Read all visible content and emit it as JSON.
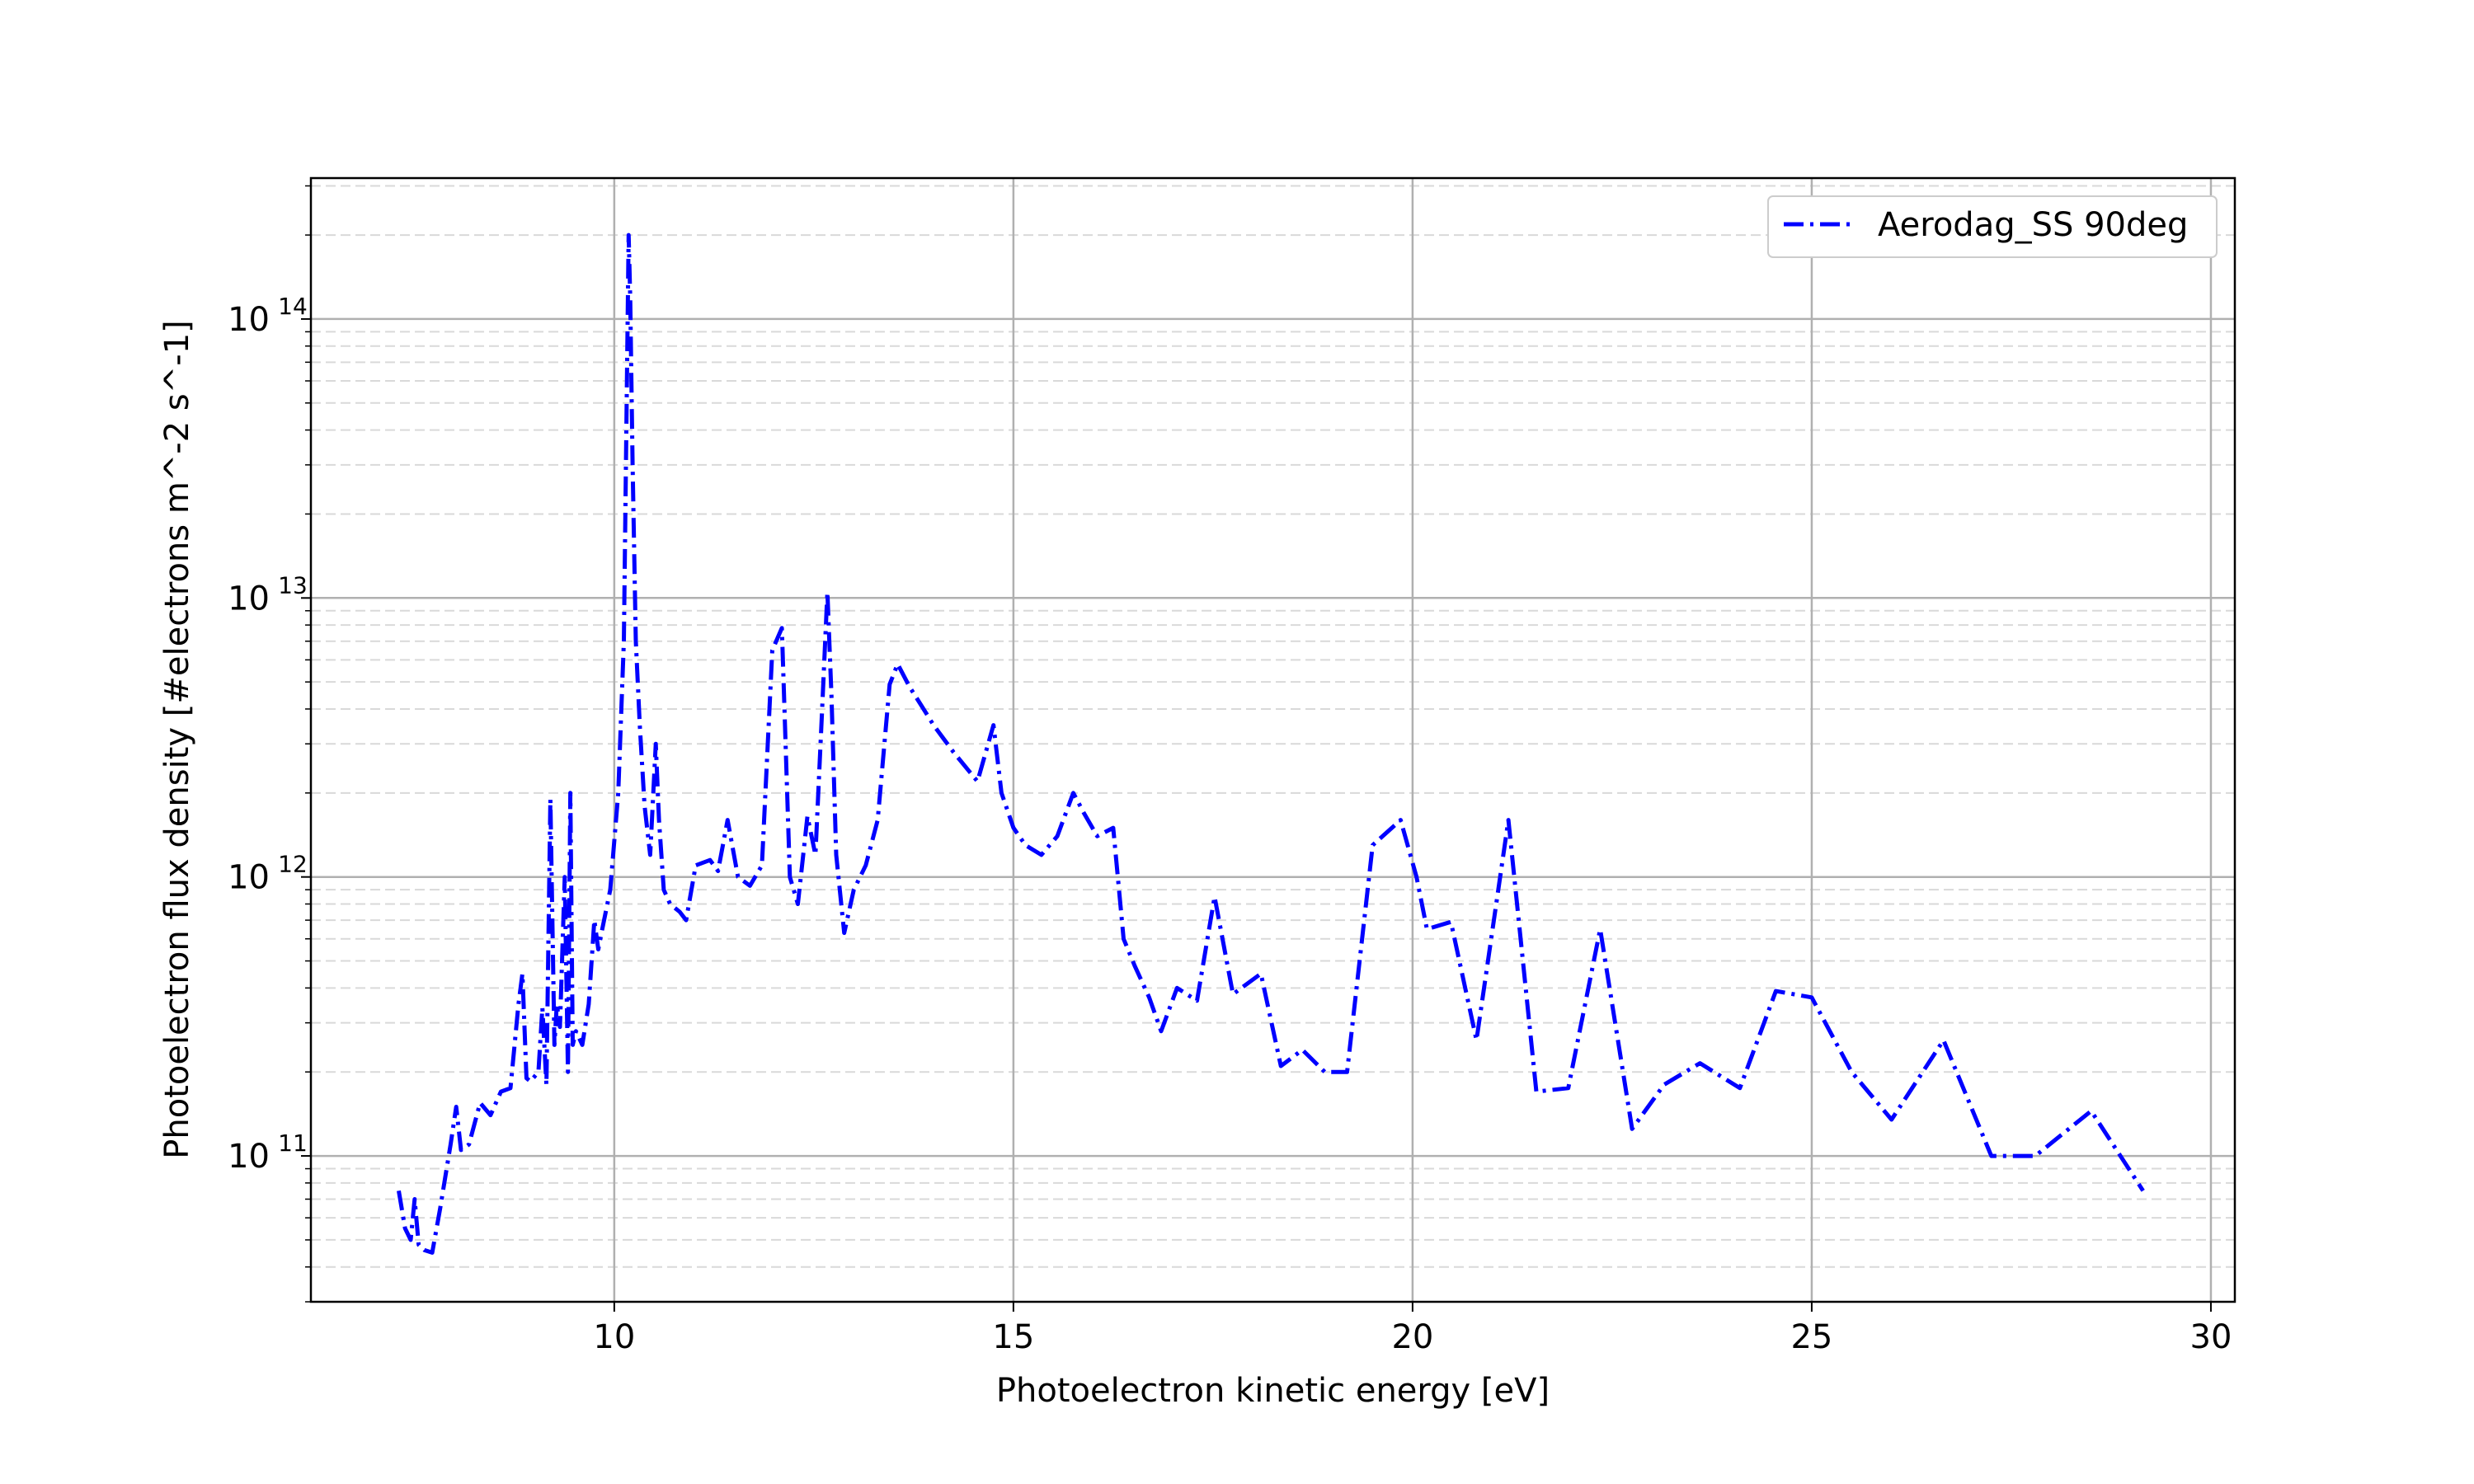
{
  "chart_data": {
    "type": "line",
    "title": "",
    "xlabel": "Photoelectron kinetic energy [eV]",
    "ylabel": "Photoelectron flux density [#electrons m^-2 s^-1]",
    "xlim": [
      6.2,
      30.3
    ],
    "ylim": [
      30000000000.0,
      320000000000000.0
    ],
    "yscale": "log",
    "grid": true,
    "minor_grid": true,
    "legend_position": "top-right",
    "xticks": [
      10,
      15,
      20,
      25,
      30
    ],
    "xtick_labels": [
      "10",
      "15",
      "20",
      "25",
      "30"
    ],
    "yticks": [
      100000000000.0,
      1000000000000.0,
      10000000000000.0,
      100000000000000.0
    ],
    "ytick_labels": [
      {
        "base": "10",
        "exp": "11"
      },
      {
        "base": "10",
        "exp": "12"
      },
      {
        "base": "10",
        "exp": "13"
      },
      {
        "base": "10",
        "exp": "14"
      }
    ],
    "series": [
      {
        "name": "Aerodag_SS 90deg",
        "color": "#0000ff",
        "line_style": "dashdot",
        "x": [
          7.3,
          7.38,
          7.45,
          7.5,
          7.55,
          7.62,
          7.72,
          7.82,
          7.95,
          8.02,
          8.08,
          8.18,
          8.32,
          8.45,
          8.58,
          8.7,
          8.8,
          8.85,
          8.9,
          8.95,
          9.05,
          9.1,
          9.15,
          9.2,
          9.25,
          9.28,
          9.32,
          9.38,
          9.42,
          9.45,
          9.48,
          9.52,
          9.6,
          9.68,
          9.75,
          9.8,
          9.85,
          9.95,
          10.05,
          10.12,
          10.18,
          10.2,
          10.23,
          10.27,
          10.32,
          10.38,
          10.45,
          10.52,
          10.56,
          10.62,
          10.7,
          10.82,
          10.9,
          11.02,
          11.2,
          11.3,
          11.42,
          11.55,
          11.7,
          11.85,
          11.98,
          12.1,
          12.2,
          12.3,
          12.42,
          12.52,
          12.6,
          12.67,
          12.72,
          12.78,
          12.88,
          13.0,
          13.15,
          13.3,
          13.45,
          13.55,
          13.7,
          13.85,
          14.0,
          14.25,
          14.55,
          14.75,
          14.85,
          15.0,
          15.15,
          15.35,
          15.55,
          15.75,
          15.88,
          16.05,
          16.25,
          16.38,
          16.52,
          16.7,
          16.85,
          17.05,
          17.3,
          17.52,
          17.75,
          18.1,
          18.35,
          18.62,
          18.9,
          19.18,
          19.5,
          19.85,
          20.05,
          20.18,
          20.48,
          20.8,
          21.2,
          21.55,
          21.95,
          22.35,
          22.75,
          23.15,
          23.6,
          24.1,
          24.55,
          25.0,
          25.5,
          26.0,
          26.65,
          27.25,
          27.8,
          28.5,
          29.15
        ],
        "y": [
          75000000000.0,
          55000000000.0,
          50000000000.0,
          70000000000.0,
          48000000000.0,
          46000000000.0,
          45000000000.0,
          65000000000.0,
          110000000000.0,
          150000000000.0,
          105000000000.0,
          110000000000.0,
          155000000000.0,
          140000000000.0,
          170000000000.0,
          175000000000.0,
          350000000000.0,
          450000000000.0,
          190000000000.0,
          185000000000.0,
          200000000000.0,
          340000000000.0,
          180000000000.0,
          1900000000000.0,
          250000000000.0,
          350000000000.0,
          290000000000.0,
          1000000000000.0,
          200000000000.0,
          2000000000000.0,
          250000000000.0,
          280000000000.0,
          250000000000.0,
          350000000000.0,
          700000000000.0,
          550000000000.0,
          650000000000.0,
          900000000000.0,
          2000000000000.0,
          7000000000000.0,
          200000000000000.0,
          120000000000000.0,
          30000000000000.0,
          7000000000000.0,
          3500000000000.0,
          1800000000000.0,
          1200000000000.0,
          3000000000000.0,
          1600000000000.0,
          900000000000.0,
          800000000000.0,
          750000000000.0,
          700000000000.0,
          1100000000000.0,
          1150000000000.0,
          1050000000000.0,
          1600000000000.0,
          1000000000000.0,
          930000000000.0,
          1100000000000.0,
          6500000000000.0,
          7800000000000.0,
          1000000000000.0,
          800000000000.0,
          1650000000000.0,
          1200000000000.0,
          3800000000000.0,
          10500000000000.0,
          4500000000000.0,
          1200000000000.0,
          630000000000.0,
          900000000000.0,
          1100000000000.0,
          1600000000000.0,
          4900000000000.0,
          5800000000000.0,
          4800000000000.0,
          4100000000000.0,
          3500000000000.0,
          2800000000000.0,
          2200000000000.0,
          3500000000000.0,
          2000000000000.0,
          1500000000000.0,
          1300000000000.0,
          1200000000000.0,
          1400000000000.0,
          2000000000000.0,
          1700000000000.0,
          1400000000000.0,
          1500000000000.0,
          600000000000.0,
          480000000000.0,
          370000000000.0,
          280000000000.0,
          400000000000.0,
          360000000000.0,
          850000000000.0,
          380000000000.0,
          450000000000.0,
          210000000000.0,
          240000000000.0,
          200000000000.0,
          200000000000.0,
          1300000000000.0,
          1600000000000.0,
          1000000000000.0,
          650000000000.0,
          690000000000.0,
          260000000000.0,
          1600000000000.0,
          170000000000.0,
          175000000000.0,
          650000000000.0,
          125000000000.0,
          180000000000.0,
          215000000000.0,
          175000000000.0,
          390000000000.0,
          370000000000.0,
          200000000000.0,
          135000000000.0,
          260000000000.0,
          100000000000.0,
          100000000000.0,
          145000000000.0,
          75000000000.0
        ]
      }
    ]
  }
}
